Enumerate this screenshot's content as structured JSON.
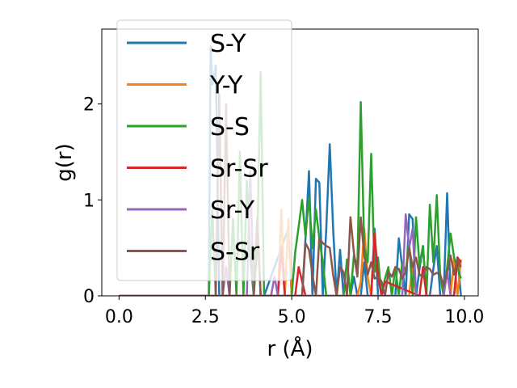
{
  "chart_data": {
    "type": "line",
    "xlabel": "r (Å)",
    "ylabel": "g(r)",
    "xlim": [
      -0.5,
      10.4
    ],
    "ylim": [
      0,
      2.78
    ],
    "xticks": [
      0.0,
      2.5,
      5.0,
      7.5,
      10.0
    ],
    "xtick_labels": [
      "0.0",
      "2.5",
      "5.0",
      "7.5",
      "10.0"
    ],
    "yticks": [
      0,
      1,
      2
    ],
    "ytick_labels": [
      "0",
      "1",
      "2"
    ],
    "grid": false,
    "legend": "top-left",
    "series": [
      {
        "name": "S-Y",
        "color": "#1f77b4",
        "x": [
          0,
          2.6,
          2.65,
          2.7,
          2.8,
          2.9,
          3.0,
          3.1,
          3.2,
          3.9,
          4.0,
          4.1,
          4.2,
          4.9,
          5.0,
          5.1,
          5.2,
          5.3,
          5.4,
          5.5,
          5.6,
          5.7,
          5.8,
          5.9,
          6.0,
          6.1,
          6.2,
          6.3,
          6.4,
          6.5,
          6.6,
          6.7,
          6.8,
          6.9,
          7.0,
          7.1,
          7.2,
          7.3,
          7.4,
          7.5,
          7.6,
          7.7,
          7.8,
          7.9,
          8.0,
          8.1,
          8.2,
          8.3,
          8.4,
          8.5,
          8.6,
          8.7,
          8.8,
          8.9,
          9.0,
          9.1,
          9.2,
          9.3,
          9.4,
          9.5,
          9.6,
          9.7,
          9.8,
          9.9
        ],
        "y": [
          0,
          0,
          2.6,
          2.2,
          2.4,
          0,
          0,
          0,
          0,
          0,
          0.8,
          0,
          0,
          0.7,
          0,
          0,
          0,
          0,
          0.6,
          1.3,
          0,
          1.22,
          1.18,
          0,
          0.7,
          1.58,
          0.7,
          0,
          0.48,
          0,
          0,
          0,
          0.2,
          0,
          0,
          0.35,
          0,
          0,
          0.7,
          0,
          0,
          0,
          0,
          0,
          0,
          0.6,
          0.3,
          0,
          0.85,
          0.8,
          0,
          0.28,
          0.52,
          0,
          0,
          0.28,
          0.52,
          0,
          0,
          1.07,
          0,
          0,
          0.4,
          0
        ]
      },
      {
        "name": "Y-Y",
        "color": "#ff7f0e",
        "x": [
          0,
          4.6,
          4.7,
          4.8,
          4.9,
          5.0,
          6.9,
          7.0,
          7.1,
          7.2,
          7.3,
          8.4,
          8.5,
          8.6,
          9.6,
          9.7,
          9.8,
          9.9
        ],
        "y": [
          0,
          0,
          0.9,
          0,
          0.8,
          0,
          0,
          0.15,
          0.7,
          0.2,
          0,
          0,
          0.35,
          0,
          0,
          0.4,
          0,
          0.38
        ]
      },
      {
        "name": "S-S",
        "color": "#2ca02c",
        "x": [
          0,
          2.6,
          2.7,
          2.8,
          3.2,
          3.3,
          3.4,
          3.5,
          3.6,
          3.7,
          3.8,
          3.9,
          4.0,
          4.1,
          4.2,
          4.3,
          5.0,
          5.1,
          5.2,
          5.3,
          5.4,
          5.5,
          5.6,
          5.7,
          5.8,
          5.9,
          6.0,
          6.1,
          6.2,
          6.3,
          6.4,
          6.5,
          6.6,
          6.7,
          6.8,
          6.9,
          7.0,
          7.1,
          7.2,
          7.3,
          7.4,
          7.5,
          7.6,
          7.7,
          7.8,
          7.9,
          8.0,
          8.1,
          8.2,
          8.3,
          8.4,
          8.5,
          8.6,
          8.7,
          8.8,
          8.9,
          9.0,
          9.1,
          9.2,
          9.3,
          9.4,
          9.5,
          9.6,
          9.7,
          9.8,
          9.9
        ],
        "y": [
          0,
          0,
          0.9,
          0,
          0,
          0.8,
          0,
          1.5,
          0,
          1.2,
          0.4,
          0,
          0.5,
          2.33,
          0,
          0,
          0,
          0.45,
          0.72,
          1.0,
          0.62,
          1.03,
          0.5,
          0.9,
          0.6,
          0.35,
          0,
          0,
          0,
          0,
          0,
          0,
          0.38,
          0,
          0.42,
          0.3,
          2.02,
          0.5,
          0.35,
          1.48,
          0.25,
          0.4,
          0,
          0.18,
          0.3,
          0,
          0.3,
          0,
          0.35,
          0.25,
          0.55,
          0,
          0.82,
          0.32,
          0.52,
          0,
          0.95,
          0.35,
          1.05,
          0.2,
          0,
          0.3,
          0.65,
          0.4,
          0.3,
          0.18
        ]
      },
      {
        "name": "Sr-Sr",
        "color": "#d62728",
        "x": [
          0,
          4.6,
          4.7,
          4.8,
          5.0,
          5.1,
          5.2,
          5.3,
          5.4,
          7.3,
          7.4,
          7.5,
          7.6,
          7.7,
          8.7,
          8.8,
          8.9,
          9.7,
          9.8,
          9.9
        ],
        "y": [
          0,
          0,
          0.5,
          0,
          0,
          0,
          0.3,
          0.15,
          0,
          0,
          0.65,
          0.2,
          0,
          0.15,
          0,
          0.3,
          0,
          0,
          0.4,
          0.35
        ]
      },
      {
        "name": "Sr-Y",
        "color": "#9467bd",
        "x": [
          0,
          3.0,
          3.1,
          3.2,
          3.7,
          3.8,
          3.9,
          4.4,
          4.5,
          4.6,
          8.2,
          8.3,
          8.4,
          8.5,
          8.6,
          9.4,
          9.5,
          9.6
        ],
        "y": [
          0,
          0,
          0.3,
          0,
          0,
          1.3,
          0,
          0,
          0.2,
          0,
          0,
          0.85,
          0.5,
          0.7,
          0,
          0,
          0.25,
          0
        ]
      },
      {
        "name": "S-Sr",
        "color": "#8c564b",
        "x": [
          0,
          2.8,
          2.9,
          3.0,
          3.1,
          3.2,
          3.9,
          4.0,
          4.1,
          5.3,
          5.4,
          5.5,
          5.6,
          5.7,
          5.8,
          5.9,
          6.0,
          6.1,
          6.2,
          6.3,
          6.4,
          6.5,
          6.6,
          6.7,
          6.8,
          6.9,
          7.0,
          7.1,
          7.2,
          7.3,
          7.4,
          7.5,
          7.6,
          7.7,
          7.8,
          7.9,
          8.0,
          8.1,
          8.2,
          8.3,
          8.4,
          8.5,
          8.6,
          8.7,
          8.8,
          8.9,
          9.0,
          9.1,
          9.2,
          9.3,
          9.4,
          9.5,
          9.6,
          9.7,
          9.8,
          9.9
        ],
        "y": [
          0,
          0,
          2.1,
          0,
          2.0,
          0,
          0,
          0.8,
          0,
          0,
          0.55,
          0.48,
          0.22,
          0,
          0.6,
          0.55,
          0.52,
          0.5,
          0.22,
          0,
          0.3,
          0.25,
          0,
          0.82,
          0.45,
          0.2,
          0.82,
          0.42,
          0.22,
          0.35,
          0.18,
          0.2,
          0.15,
          0,
          0.25,
          0.2,
          0.3,
          0.28,
          0.18,
          0.25,
          0.5,
          0.3,
          0.4,
          0.22,
          0.2,
          0.3,
          0.28,
          0.22,
          0.24,
          0.22,
          0.1,
          0.25,
          0.42,
          0.22,
          0.38,
          0.3
        ]
      }
    ]
  }
}
